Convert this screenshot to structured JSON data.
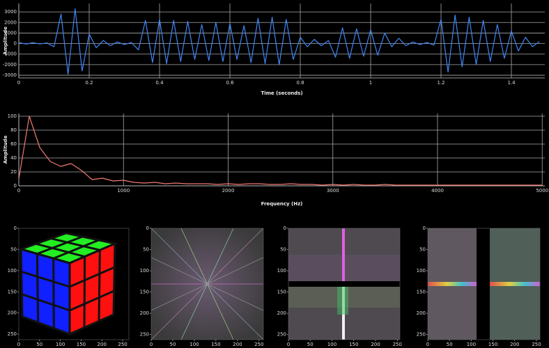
{
  "chart_data": [
    {
      "type": "line",
      "xlabel": "Time (seconds)",
      "ylabel": "Amplitude",
      "color": "#3f86f5",
      "grid": true,
      "x": [
        0,
        0.02,
        0.04,
        0.06,
        0.08,
        0.1,
        0.12,
        0.14,
        0.16,
        0.18,
        0.2,
        0.22,
        0.24,
        0.26,
        0.28,
        0.3,
        0.32,
        0.34,
        0.36,
        0.38,
        0.4,
        0.42,
        0.44,
        0.46,
        0.48,
        0.5,
        0.52,
        0.54,
        0.56,
        0.58,
        0.6,
        0.62,
        0.64,
        0.66,
        0.68,
        0.7,
        0.72,
        0.74,
        0.76,
        0.78,
        0.8,
        0.82,
        0.84,
        0.86,
        0.88,
        0.9,
        0.92,
        0.94,
        0.96,
        0.98,
        1.0,
        1.02,
        1.04,
        1.06,
        1.08,
        1.1,
        1.12,
        1.14,
        1.16,
        1.18,
        1.2,
        1.22,
        1.24,
        1.26,
        1.28,
        1.3,
        1.32,
        1.34,
        1.36,
        1.38,
        1.4,
        1.42,
        1.44,
        1.46,
        1.48
      ],
      "values": [
        100,
        -50,
        80,
        -40,
        60,
        -300,
        2800,
        -2900,
        3300,
        -2600,
        900,
        -400,
        300,
        -200,
        150,
        -100,
        100,
        -600,
        2200,
        -1800,
        2300,
        -1900,
        2200,
        -1700,
        2100,
        -1500,
        1800,
        -1600,
        2000,
        -1700,
        1900,
        -1500,
        1700,
        -1800,
        2400,
        -1900,
        2500,
        -2000,
        2300,
        -1500,
        600,
        -300,
        400,
        -200,
        300,
        -1300,
        1500,
        -1400,
        1400,
        -1200,
        1300,
        -1100,
        1000,
        -300,
        500,
        -200,
        150,
        -100,
        100,
        -150,
        2300,
        -2700,
        2700,
        -2200,
        2500,
        -2000,
        2200,
        -1700,
        1800,
        -1400,
        1200,
        -700,
        600,
        -300,
        200
      ],
      "xlim": [
        0,
        1.495
      ],
      "ylim": [
        -3260,
        3800
      ],
      "xticks": [
        0,
        0.2,
        0.4,
        0.6,
        0.8,
        1,
        1.2,
        1.4
      ],
      "yticks": [
        -3000,
        -2000,
        -1000,
        0,
        1000,
        2000,
        3000
      ]
    },
    {
      "type": "line",
      "xlabel": "Frequency (Hz)",
      "ylabel": "Amplitude",
      "color": "#f07a72",
      "grid": true,
      "x": [
        0,
        100,
        200,
        300,
        400,
        500,
        600,
        700,
        800,
        900,
        1000,
        1100,
        1200,
        1300,
        1400,
        1500,
        1600,
        1700,
        1800,
        1900,
        2000,
        2100,
        2200,
        2300,
        2400,
        2500,
        2600,
        2700,
        2800,
        2900,
        3000,
        3100,
        3200,
        3300,
        3400,
        3500,
        3600,
        3700,
        3800,
        3900,
        4000,
        4100,
        4200,
        4300,
        4400,
        4500,
        4600,
        4700,
        4800,
        4900,
        5000
      ],
      "values": [
        10,
        100,
        55,
        35,
        28,
        32,
        22,
        9,
        11,
        7,
        8,
        5,
        4,
        5,
        3,
        4,
        3,
        3,
        3,
        2,
        3,
        2,
        3,
        3,
        2,
        2,
        3,
        2,
        2,
        1,
        2,
        1,
        2,
        1,
        1,
        2,
        1,
        1,
        1,
        1,
        1,
        1,
        1,
        1,
        1,
        1,
        1,
        1,
        1,
        1,
        1
      ],
      "xlim": [
        0,
        5025
      ],
      "ylim": [
        0,
        104
      ],
      "xticks": [
        0,
        1000,
        2000,
        3000,
        4000,
        5000
      ],
      "yticks": [
        0,
        20,
        40,
        60,
        80,
        100
      ]
    },
    {
      "type": "image",
      "xlim": [
        0,
        265
      ],
      "ylim": [
        0,
        263
      ],
      "xticks": [
        0,
        50,
        100,
        150,
        200,
        250
      ],
      "yticks": [
        0,
        50,
        100,
        150,
        200,
        250
      ]
    },
    {
      "type": "image",
      "xlim": [
        0,
        260
      ],
      "ylim": [
        0,
        262
      ],
      "xticks": [
        0,
        50,
        100,
        150,
        200,
        250
      ],
      "yticks": [
        0,
        50,
        100,
        150,
        200,
        250
      ]
    },
    {
      "type": "image",
      "xlim": [
        0,
        256
      ],
      "ylim": [
        0,
        262
      ],
      "xticks": [
        0,
        50,
        100,
        150,
        200,
        250
      ],
      "yticks": [
        0,
        50,
        100,
        150,
        200,
        250
      ]
    },
    {
      "type": "image",
      "xlim": [
        0,
        258
      ],
      "ylim": [
        0,
        262
      ],
      "xticks": [
        0,
        50,
        100,
        150,
        200,
        250
      ],
      "yticks": [
        0,
        50,
        100,
        150,
        200,
        250
      ]
    }
  ]
}
